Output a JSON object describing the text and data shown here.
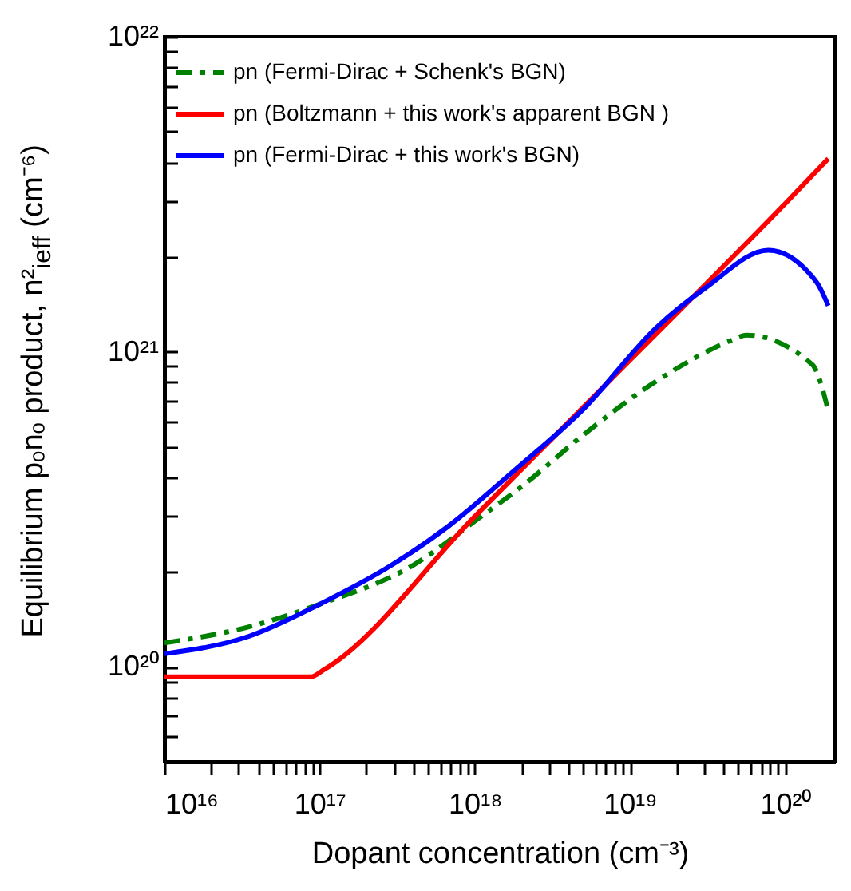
{
  "chart_data": {
    "type": "line",
    "xlabel": "Dopant concentration (cm⁻³)",
    "ylabel": "Equilibrium pₒnₒ product, n²$_{ieff}$ (cm⁻⁶)",
    "log": "xy",
    "legend": "top left",
    "grid": false,
    "marker": "none",
    "xlim": [
      1e+16,
      2.1e+20
    ],
    "ylim": [
      5e+19,
      1e+22
    ],
    "xticks": [
      {
        "value": 1e+16,
        "label": "10¹⁶"
      },
      {
        "value": 2e+16,
        "label": null
      },
      {
        "value": 3e+16,
        "label": null
      },
      {
        "value": 4e+16,
        "label": null
      },
      {
        "value": 5e+16,
        "label": null
      },
      {
        "value": 6e+16,
        "label": null
      },
      {
        "value": 7e+16,
        "label": null
      },
      {
        "value": 8e+16,
        "label": null
      },
      {
        "value": 9e+16,
        "label": null
      },
      {
        "value": 1e+17,
        "label": "10¹⁷"
      },
      {
        "value": 2e+17,
        "label": null
      },
      {
        "value": 3e+17,
        "label": null
      },
      {
        "value": 4e+17,
        "label": null
      },
      {
        "value": 5e+17,
        "label": null
      },
      {
        "value": 6e+17,
        "label": null
      },
      {
        "value": 7e+17,
        "label": null
      },
      {
        "value": 8e+17,
        "label": null
      },
      {
        "value": 9e+17,
        "label": null
      },
      {
        "value": 1e+18,
        "label": "10¹⁸"
      },
      {
        "value": 2e+18,
        "label": null
      },
      {
        "value": 3e+18,
        "label": null
      },
      {
        "value": 4e+18,
        "label": null
      },
      {
        "value": 5e+18,
        "label": null
      },
      {
        "value": 6e+18,
        "label": null
      },
      {
        "value": 7e+18,
        "label": null
      },
      {
        "value": 8e+18,
        "label": null
      },
      {
        "value": 9e+18,
        "label": null
      },
      {
        "value": 1e+19,
        "label": "10¹⁹"
      },
      {
        "value": 2e+19,
        "label": null
      },
      {
        "value": 3e+19,
        "label": null
      },
      {
        "value": 4e+19,
        "label": null
      },
      {
        "value": 5e+19,
        "label": null
      },
      {
        "value": 6e+19,
        "label": null
      },
      {
        "value": 7e+19,
        "label": null
      },
      {
        "value": 8e+19,
        "label": null
      },
      {
        "value": 9e+19,
        "label": null
      },
      {
        "value": 1e+20,
        "label": "10²⁰"
      }
    ],
    "yticks": [
      {
        "value": 6e+19,
        "label": null
      },
      {
        "value": 7e+19,
        "label": null
      },
      {
        "value": 8e+19,
        "label": null
      },
      {
        "value": 9e+19,
        "label": null
      },
      {
        "value": 1e+20,
        "label": "10²⁰"
      },
      {
        "value": 2e+20,
        "label": null
      },
      {
        "value": 3e+20,
        "label": null
      },
      {
        "value": 4e+20,
        "label": null
      },
      {
        "value": 5e+20,
        "label": null
      },
      {
        "value": 6e+20,
        "label": null
      },
      {
        "value": 7e+20,
        "label": null
      },
      {
        "value": 8e+20,
        "label": null
      },
      {
        "value": 9e+20,
        "label": null
      },
      {
        "value": 1e+21,
        "label": "10²¹"
      },
      {
        "value": 2e+21,
        "label": null
      },
      {
        "value": 3e+21,
        "label": null
      },
      {
        "value": 4e+21,
        "label": null
      },
      {
        "value": 5e+21,
        "label": null
      },
      {
        "value": 6e+21,
        "label": null
      },
      {
        "value": 7e+21,
        "label": null
      },
      {
        "value": 8e+21,
        "label": null
      },
      {
        "value": 9e+21,
        "label": null
      },
      {
        "value": 1e+22,
        "label": "10²²"
      }
    ],
    "series": [
      {
        "name": "pn (Fermi-Dirac + Schenk's BGN)",
        "color": "#008000",
        "line_style": "dashed",
        "x": [
          1e+16,
          3.5e+16,
          1e+17,
          4e+17,
          1.1e+18,
          2.1e+18,
          4.9e+18,
          1.5e+19,
          4.8e+19,
          5.6e+19,
          1.5e+20,
          1.9e+20
        ],
        "values": [
          1.19e+20,
          1.34e+20,
          1.58e+20,
          2.1e+20,
          3e+20,
          3.8e+20,
          5.4e+20,
          8.1e+20,
          1.1e+21,
          1.13e+21,
          9.1e+20,
          6.5e+20
        ]
      },
      {
        "name": "pn (Boltzmann + this work's apparent BGN )",
        "color": "#ff0000",
        "line_style": "solid",
        "x": [
          1e+16,
          8.8e+16,
          1.07e+17,
          1e+18,
          1e+19,
          1e+20,
          1.9e+20
        ],
        "values": [
          9.3e+19,
          9.3e+19,
          9.8e+19,
          3e+20,
          9.4e+20,
          2.95e+21,
          4.1e+21
        ]
      },
      {
        "name": "pn (Fermi-Dirac + this work's BGN)",
        "color": "#0000ff",
        "line_style": "solid",
        "x": [
          1e+16,
          3.5e+16,
          1e+17,
          2.9e+17,
          6.8e+17,
          1.8e+18,
          4.9e+18,
          1.5e+19,
          3.1e+19,
          7.8e+19,
          1.6e+20,
          1.9e+20
        ],
        "values": [
          1.1e+20,
          1.25e+20,
          1.58e+20,
          2.1e+20,
          2.8e+20,
          4.2e+20,
          6.5e+20,
          1.2e+21,
          1.6e+21,
          2.1e+21,
          1.66e+21,
          1.4e+21
        ]
      }
    ]
  }
}
